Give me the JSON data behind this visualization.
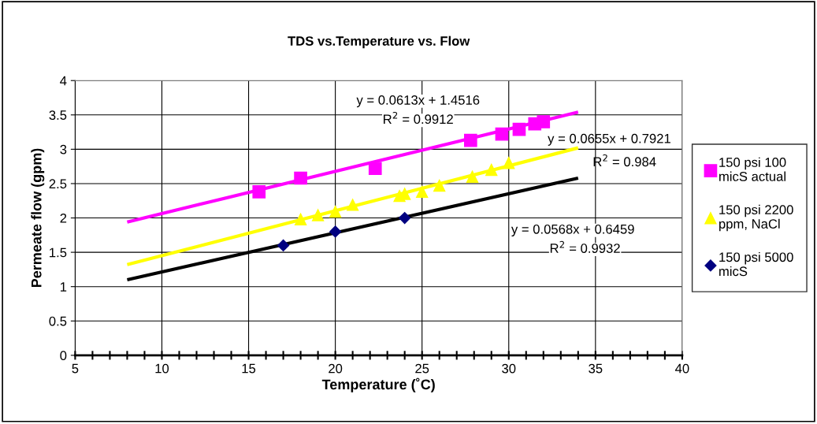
{
  "chart_data": {
    "type": "scatter",
    "title": "TDS vs.Temperature vs. Flow",
    "xlabel": "Temperature (˚C)",
    "ylabel": "Permeate flow (gpm)",
    "xlim": [
      5,
      40
    ],
    "ylim": [
      0,
      4
    ],
    "xticks": [
      5,
      {
        "value": 6,
        "label": null
      },
      {
        "value": 7,
        "label": null
      },
      {
        "value": 8,
        "label": null
      },
      {
        "value": 9,
        "label": null
      },
      10,
      {
        "value": 11,
        "label": null
      },
      {
        "value": 12,
        "label": null
      },
      {
        "value": 13,
        "label": null
      },
      {
        "value": 14,
        "label": null
      },
      15,
      {
        "value": 16,
        "label": null
      },
      {
        "value": 17,
        "label": null
      },
      {
        "value": 18,
        "label": null
      },
      {
        "value": 19,
        "label": null
      },
      20,
      {
        "value": 21,
        "label": null
      },
      {
        "value": 22,
        "label": null
      },
      {
        "value": 23,
        "label": null
      },
      {
        "value": 24,
        "label": null
      },
      25,
      {
        "value": 26,
        "label": null
      },
      {
        "value": 27,
        "label": null
      },
      {
        "value": 28,
        "label": null
      },
      {
        "value": 29,
        "label": null
      },
      30,
      {
        "value": 31,
        "label": null
      },
      {
        "value": 32,
        "label": null
      },
      {
        "value": 33,
        "label": null
      },
      {
        "value": 34,
        "label": null
      },
      35,
      {
        "value": 36,
        "label": null
      },
      {
        "value": 37,
        "label": null
      },
      {
        "value": 38,
        "label": null
      },
      {
        "value": 39,
        "label": null
      },
      40
    ],
    "yticks": [
      0,
      0.5,
      1,
      1.5,
      2,
      2.5,
      3,
      3.5,
      4
    ],
    "grid": true,
    "legend": "right",
    "series": [
      {
        "name": "150 psi 100 micS actual",
        "marker": "square",
        "color": "#ff00ff",
        "x": [
          15.6,
          18,
          22.3,
          27.8,
          29.6,
          30.6,
          31.5,
          32
        ],
        "values": [
          2.38,
          2.58,
          2.72,
          3.13,
          3.22,
          3.29,
          3.37,
          3.4
        ]
      },
      {
        "name": "150 psi 2200 ppm, NaCl",
        "marker": "triangle",
        "color": "#ffff00",
        "x": [
          18,
          19,
          20,
          21,
          23.7,
          24,
          25,
          26,
          27.9,
          29,
          30
        ],
        "values": [
          1.98,
          2.04,
          2.09,
          2.19,
          2.32,
          2.35,
          2.38,
          2.47,
          2.6,
          2.7,
          2.8
        ]
      },
      {
        "name": "150 psi 5000 micS",
        "marker": "diamond",
        "color": "#000080",
        "x": [
          17,
          20,
          24
        ],
        "values": [
          1.6,
          1.8,
          2.0
        ]
      },
      {
        "type": "line",
        "color": "#ff00ff",
        "x": [
          8,
          34
        ],
        "values": [
          1.94,
          3.54
        ]
      },
      {
        "type": "line",
        "color": "#ffff00",
        "x": [
          8,
          34
        ],
        "values": [
          1.32,
          3.02
        ]
      },
      {
        "type": "line",
        "color": "#000000",
        "x": [
          8,
          34
        ],
        "values": [
          1.1,
          2.58
        ]
      }
    ],
    "annotations": [
      "y = 0.0613x + 1.4516",
      "R$^{2}$ = 0.9912",
      "y = 0.0655x + 0.7921",
      "R$^{2}$ = 0.984",
      "y = 0.0568x + 0.6459",
      "R$^{2}$ = 0.9932"
    ]
  }
}
